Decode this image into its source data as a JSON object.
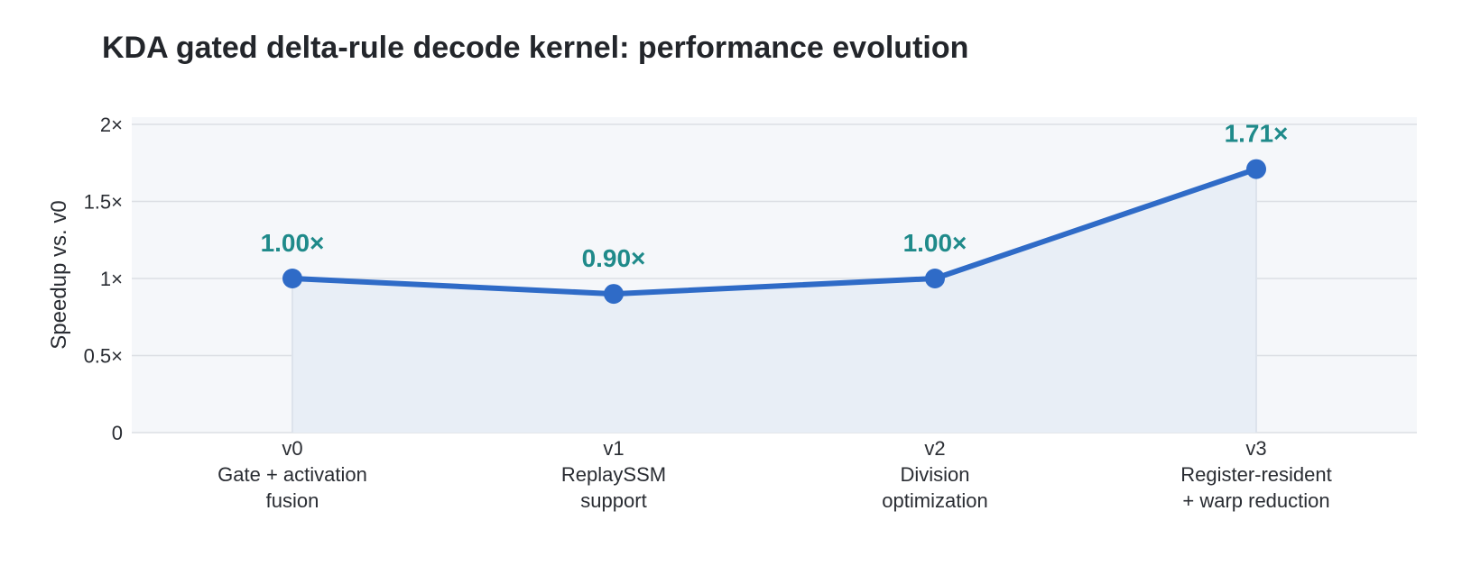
{
  "chart_data": {
    "type": "line",
    "title": "KDA gated delta-rule decode kernel: performance evolution",
    "ylabel": "Speedup vs. v0",
    "xlabel": "",
    "ylim": [
      0,
      2
    ],
    "yticks": [
      {
        "value": 0,
        "label": "0"
      },
      {
        "value": 0.5,
        "label": "0.5×"
      },
      {
        "value": 1,
        "label": "1×"
      },
      {
        "value": 1.5,
        "label": "1.5×"
      },
      {
        "value": 2,
        "label": "2×"
      }
    ],
    "categories": [
      {
        "version": "v0",
        "lines": [
          "Gate + activation",
          "fusion"
        ]
      },
      {
        "version": "v1",
        "lines": [
          "ReplaySSM",
          "support"
        ]
      },
      {
        "version": "v2",
        "lines": [
          "Division",
          "optimization"
        ]
      },
      {
        "version": "v3",
        "lines": [
          "Register-resident",
          "+ warp reduction"
        ]
      }
    ],
    "series": [
      {
        "values": [
          1.0,
          0.9,
          1.0,
          1.71
        ],
        "data_labels": [
          "1.00×",
          "0.90×",
          "1.00×",
          "1.71×"
        ]
      }
    ],
    "grid": true,
    "colors": {
      "line": "#2f6bc7",
      "data_label": "#1f8a8a",
      "plot_bg": "#f5f7fa",
      "area": "#e8eef6",
      "grid": "#dcdfe4"
    }
  }
}
